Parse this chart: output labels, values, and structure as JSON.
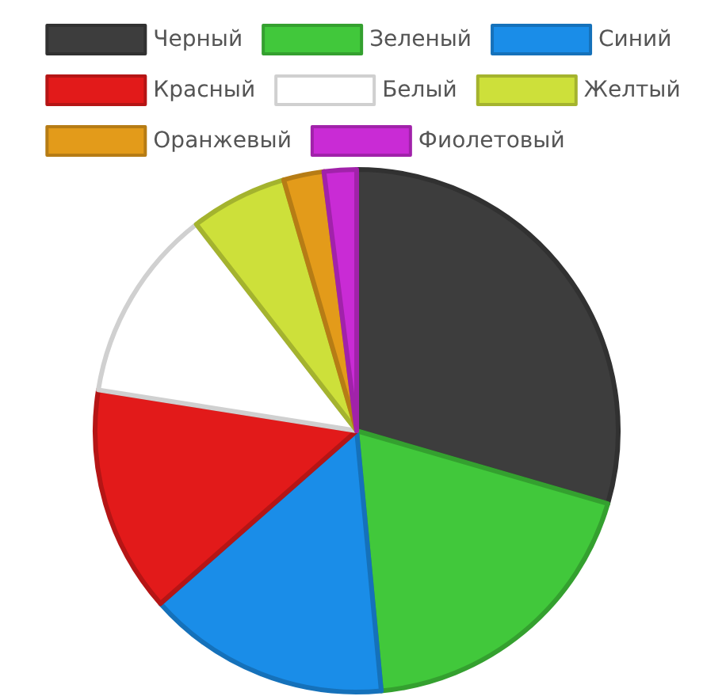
{
  "chart_data": {
    "type": "pie",
    "legend": "top",
    "categories": [
      "Черный",
      "Зеленый",
      "Синий",
      "Красный",
      "Белый",
      "Желтый",
      "Оранжевый",
      "Фиолетовый"
    ],
    "values": [
      29.5,
      19,
      15,
      14,
      12,
      6,
      2.5,
      2
    ],
    "colors": [
      "#3d3d3d",
      "#41c83b",
      "#1a8de8",
      "#e21a1a",
      "#ffffff",
      "#cde03a",
      "#e39b1a",
      "#c92bd5"
    ]
  }
}
